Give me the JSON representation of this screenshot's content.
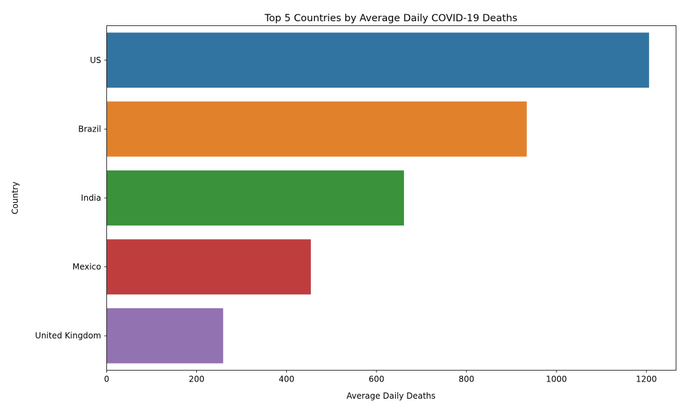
{
  "chart_data": {
    "type": "bar",
    "orientation": "horizontal",
    "title": "Top 5 Countries by Average Daily COVID-19 Deaths",
    "xlabel": "Average Daily Deaths",
    "ylabel": "Country",
    "categories": [
      "US",
      "Brazil",
      "India",
      "Mexico",
      "United Kingdom"
    ],
    "values": [
      1206,
      934,
      661,
      454,
      259
    ],
    "colors": [
      "#3274a1",
      "#e1812c",
      "#3a923a",
      "#c03d3e",
      "#9372b2"
    ],
    "xlim": [
      0,
      1266
    ],
    "xticks": [
      0,
      200,
      400,
      600,
      800,
      1000,
      1200
    ],
    "grid": false,
    "legend": "none"
  }
}
